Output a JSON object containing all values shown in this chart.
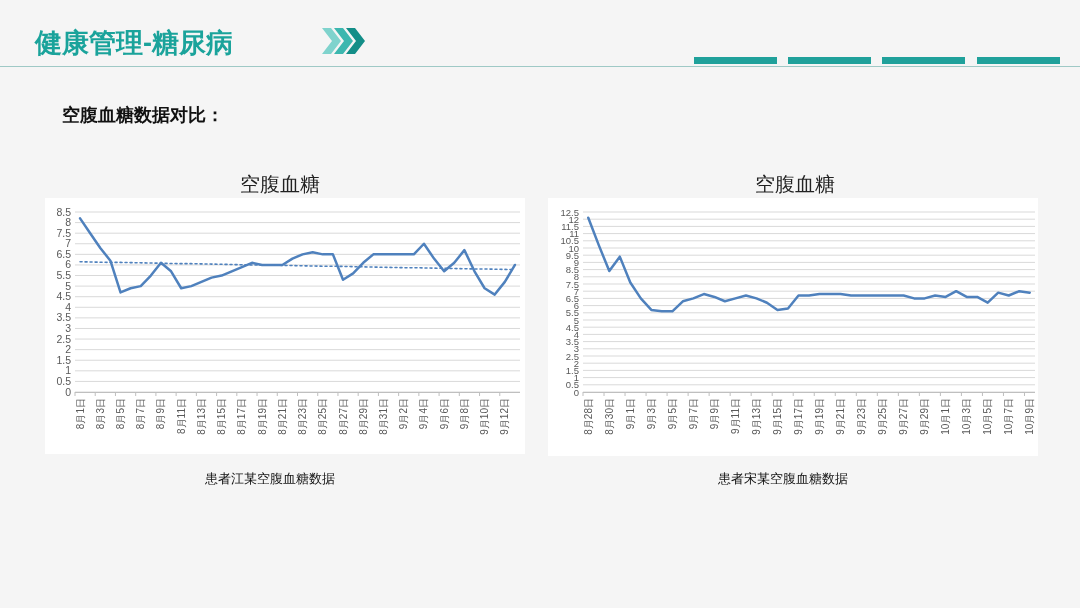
{
  "chart_data": [
    {
      "type": "line",
      "title": "空腹血糖",
      "annotations": [
        "健康管理-糖尿病",
        "空腹血糖数据对比：",
        "患者江某空腹血糖数据"
      ],
      "categories": [
        "8月1日",
        null,
        "8月3日",
        null,
        "8月5日",
        null,
        "8月7日",
        null,
        "8月9日",
        null,
        "8月11日",
        null,
        "8月13日",
        null,
        "8月15日",
        null,
        "8月17日",
        null,
        "8月19日",
        null,
        "8月21日",
        null,
        "8月23日",
        null,
        "8月25日",
        null,
        "8月27日",
        null,
        "8月29日",
        null,
        "8月31日",
        null,
        "9月2日",
        null,
        "9月4日",
        null,
        "9月6日",
        null,
        "9月8日",
        null,
        "9月10日",
        null,
        "9月12日",
        null
      ],
      "series": [
        {
          "color": "#4f81bd",
          "values": [
            8.2,
            7.5,
            6.8,
            6.2,
            4.7,
            4.9,
            5.0,
            5.5,
            6.1,
            5.7,
            4.9,
            5.0,
            5.2,
            5.4,
            5.5,
            5.7,
            5.9,
            6.1,
            6.0,
            6.0,
            6.0,
            6.3,
            6.5,
            6.6,
            6.5,
            6.5,
            5.3,
            5.6,
            6.1,
            6.5,
            6.5,
            6.5,
            6.5,
            6.5,
            7.0,
            6.3,
            5.7,
            6.1,
            6.7,
            5.7,
            4.9,
            4.6,
            5.2,
            6.0
          ]
        },
        {
          "type": "line",
          "line_style": "dotted",
          "color": "#4f81bd",
          "values": [
            6.15,
            6.14,
            6.13,
            6.12,
            6.12,
            6.11,
            6.1,
            6.09,
            6.08,
            6.07,
            6.06,
            6.06,
            6.05,
            6.04,
            6.03,
            6.02,
            6.01,
            6.0,
            5.99,
            5.99,
            5.98,
            5.97,
            5.96,
            5.95,
            5.94,
            5.94,
            5.93,
            5.92,
            5.91,
            5.9,
            5.89,
            5.88,
            5.87,
            5.87,
            5.86,
            5.85,
            5.84,
            5.83,
            5.82,
            5.81,
            5.81,
            5.8,
            5.79,
            5.78
          ]
        }
      ],
      "ylim": [
        0,
        8.5
      ],
      "yticks": [
        0,
        0.5,
        1,
        1.5,
        2,
        2.5,
        3,
        3.5,
        4,
        4.5,
        5,
        5.5,
        6,
        6.5,
        7,
        7.5,
        8,
        8.5
      ],
      "grid": "y",
      "line_style": "solid",
      "marker": "none"
    },
    {
      "type": "line",
      "title": "空腹血糖",
      "annotations": [
        "患者宋某空腹血糖数据"
      ],
      "categories": [
        "8月28日",
        null,
        "8月30日",
        null,
        "9月1日",
        null,
        "9月3日",
        null,
        "9月5日",
        null,
        "9月7日",
        null,
        "9月9日",
        null,
        "9月11日",
        null,
        "9月13日",
        null,
        "9月15日",
        null,
        "9月17日",
        null,
        "9月19日",
        null,
        "9月21日",
        null,
        "9月23日",
        null,
        "9月25日",
        null,
        "9月27日",
        null,
        "9月29日",
        null,
        "10月1日",
        null,
        "10月3日",
        null,
        "10月5日",
        null,
        "10月7日",
        null,
        "10月9日"
      ],
      "series": [
        {
          "color": "#4f81bd",
          "values": [
            12.1,
            10.2,
            8.4,
            9.4,
            7.6,
            6.5,
            5.7,
            5.6,
            5.6,
            6.3,
            6.5,
            6.8,
            6.6,
            6.3,
            6.5,
            6.7,
            6.5,
            6.2,
            5.7,
            5.8,
            6.7,
            6.7,
            6.8,
            6.8,
            6.8,
            6.7,
            6.7,
            6.7,
            6.7,
            6.7,
            6.7,
            6.5,
            6.5,
            6.7,
            6.6,
            7.0,
            6.6,
            6.6,
            6.2,
            6.9,
            6.7,
            7.0,
            6.9
          ]
        }
      ],
      "ylim": [
        0,
        12.5
      ],
      "yticks": [
        0,
        0.5,
        1,
        1.5,
        2,
        2.5,
        3,
        3.5,
        4,
        4.5,
        5,
        5.5,
        6,
        6.5,
        7,
        7.5,
        8,
        8.5,
        9,
        9.5,
        10,
        10.5,
        11,
        11.5,
        12,
        12.5
      ],
      "grid": "y",
      "line_style": "solid",
      "marker": "none"
    }
  ]
}
